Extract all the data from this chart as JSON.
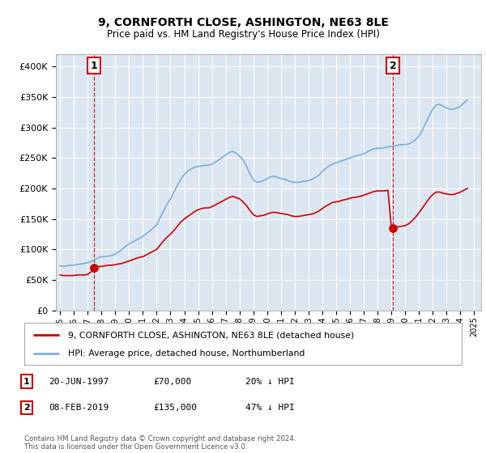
{
  "title": "9, CORNFORTH CLOSE, ASHINGTON, NE63 8LE",
  "subtitle": "Price paid vs. HM Land Registry's House Price Index (HPI)",
  "yticks": [
    0,
    50000,
    100000,
    150000,
    200000,
    250000,
    300000,
    350000,
    400000
  ],
  "ylim": [
    0,
    420000
  ],
  "plot_bg_color": "#dce6f1",
  "fig_bg_color": "#ffffff",
  "hpi_color": "#7aaedc",
  "price_color": "#cc0000",
  "marker_color": "#cc0000",
  "annotation_box_color": "#cc0000",
  "vline_color": "#cc0000",
  "grid_color": "#ffffff",
  "legend_label_price": "9, CORNFORTH CLOSE, ASHINGTON, NE63 8LE (detached house)",
  "legend_label_hpi": "HPI: Average price, detached house, Northumberland",
  "annotation1_label": "1",
  "annotation1_date": "20-JUN-1997",
  "annotation1_price": "£70,000",
  "annotation1_pct": "20% ↓ HPI",
  "annotation2_label": "2",
  "annotation2_date": "08-FEB-2019",
  "annotation2_price": "£135,000",
  "annotation2_pct": "47% ↓ HPI",
  "footer": "Contains HM Land Registry data © Crown copyright and database right 2024.\nThis data is licensed under the Open Government Licence v3.0.",
  "sale1_year": 1997.47,
  "sale1_price": 70000,
  "sale2_year": 2019.1,
  "sale2_price": 135000,
  "hpi_years": [
    1995.0,
    1995.25,
    1995.5,
    1995.75,
    1996.0,
    1996.25,
    1996.5,
    1996.75,
    1997.0,
    1997.25,
    1997.5,
    1997.75,
    1998.0,
    1998.25,
    1998.5,
    1998.75,
    1999.0,
    1999.25,
    1999.5,
    1999.75,
    2000.0,
    2000.25,
    2000.5,
    2000.75,
    2001.0,
    2001.25,
    2001.5,
    2001.75,
    2002.0,
    2002.25,
    2002.5,
    2002.75,
    2003.0,
    2003.25,
    2003.5,
    2003.75,
    2004.0,
    2004.25,
    2004.5,
    2004.75,
    2005.0,
    2005.25,
    2005.5,
    2005.75,
    2006.0,
    2006.25,
    2006.5,
    2006.75,
    2007.0,
    2007.25,
    2007.5,
    2007.75,
    2008.0,
    2008.25,
    2008.5,
    2008.75,
    2009.0,
    2009.25,
    2009.5,
    2009.75,
    2010.0,
    2010.25,
    2010.5,
    2010.75,
    2011.0,
    2011.25,
    2011.5,
    2011.75,
    2012.0,
    2012.25,
    2012.5,
    2012.75,
    2013.0,
    2013.25,
    2013.5,
    2013.75,
    2014.0,
    2014.25,
    2014.5,
    2014.75,
    2015.0,
    2015.25,
    2015.5,
    2015.75,
    2016.0,
    2016.25,
    2016.5,
    2016.75,
    2017.0,
    2017.25,
    2017.5,
    2017.75,
    2018.0,
    2018.25,
    2018.5,
    2018.75,
    2019.0,
    2019.25,
    2019.5,
    2019.75,
    2020.0,
    2020.25,
    2020.5,
    2020.75,
    2021.0,
    2021.25,
    2021.5,
    2021.75,
    2022.0,
    2022.25,
    2022.5,
    2022.75,
    2023.0,
    2023.25,
    2023.5,
    2023.75,
    2024.0,
    2024.25,
    2024.5
  ],
  "hpi_values": [
    73000,
    72000,
    73000,
    74000,
    74000,
    75000,
    76000,
    77000,
    78000,
    80000,
    83000,
    86000,
    88000,
    88000,
    89000,
    90000,
    92000,
    96000,
    100000,
    105000,
    109000,
    112000,
    115000,
    118000,
    121000,
    126000,
    130000,
    135000,
    140000,
    152000,
    163000,
    174000,
    183000,
    194000,
    205000,
    215000,
    223000,
    228000,
    232000,
    235000,
    236000,
    237000,
    238000,
    238000,
    240000,
    243000,
    247000,
    251000,
    255000,
    259000,
    261000,
    258000,
    253000,
    247000,
    237000,
    224000,
    214000,
    210000,
    211000,
    213000,
    216000,
    219000,
    220000,
    218000,
    216000,
    215000,
    213000,
    211000,
    210000,
    210000,
    211000,
    212000,
    213000,
    215000,
    218000,
    222000,
    228000,
    233000,
    237000,
    240000,
    242000,
    244000,
    246000,
    248000,
    250000,
    252000,
    254000,
    255000,
    257000,
    260000,
    263000,
    265000,
    266000,
    266000,
    267000,
    268000,
    269000,
    270000,
    271000,
    272000,
    272000,
    273000,
    276000,
    280000,
    286000,
    296000,
    308000,
    320000,
    330000,
    337000,
    338000,
    335000,
    332000,
    330000,
    330000,
    332000,
    335000,
    340000,
    345000
  ],
  "price_values": [
    58000,
    57000,
    57000,
    57000,
    57000,
    58000,
    58000,
    58000,
    59000,
    63000,
    70000,
    72000,
    72000,
    73000,
    74000,
    74000,
    75000,
    76000,
    77000,
    79000,
    81000,
    83000,
    85000,
    87000,
    88000,
    91000,
    94000,
    97000,
    100000,
    107000,
    114000,
    120000,
    125000,
    131000,
    138000,
    145000,
    150000,
    154000,
    158000,
    162000,
    165000,
    167000,
    168000,
    168000,
    170000,
    173000,
    176000,
    179000,
    182000,
    185000,
    187000,
    185000,
    183000,
    178000,
    172000,
    164000,
    157000,
    154000,
    155000,
    156000,
    158000,
    160000,
    161000,
    160000,
    159000,
    158000,
    157000,
    155000,
    154000,
    154000,
    155000,
    156000,
    157000,
    158000,
    160000,
    163000,
    167000,
    171000,
    174000,
    177000,
    178000,
    179000,
    181000,
    182000,
    184000,
    185000,
    186000,
    187000,
    189000,
    191000,
    193000,
    195000,
    196000,
    196000,
    196000,
    197000,
    135000,
    136000,
    137000,
    138000,
    139000,
    142000,
    147000,
    153000,
    160000,
    168000,
    176000,
    184000,
    190000,
    194000,
    194000,
    192000,
    191000,
    190000,
    190000,
    192000,
    194000,
    197000,
    200000
  ]
}
